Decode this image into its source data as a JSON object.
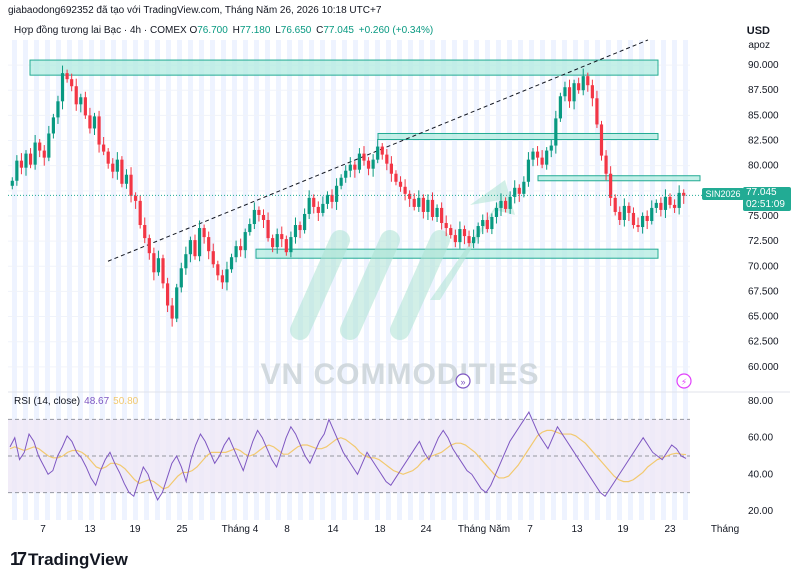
{
  "header": {
    "creator": "giabaodong692352 đã tạo với TradingView.com, Tháng Năm 26, 2026 10:18 UTC+7",
    "currency": "USD",
    "scale_mode": "apoz"
  },
  "legend": {
    "symbol": "Hợp đồng tương lai Bạc · 4h · COMEX",
    "open_label": "O",
    "open": "76.700",
    "high_label": "H",
    "high": "77.180",
    "low_label": "L",
    "low": "76.650",
    "close_label": "C",
    "close": "77.045",
    "change": "+0.260 (+0.34%)"
  },
  "price_badge": {
    "ticker": "SIN2026",
    "price": "77.045",
    "countdown": "02:51:09"
  },
  "rsi_legend": {
    "label": "RSI (14, close)",
    "rsi": "48.67",
    "ma": "50.80"
  },
  "watermark": "VN COMMODITIES",
  "footer": {
    "logo": "17",
    "brand": "TradingView"
  },
  "colors": {
    "up": "#089981",
    "down": "#f23645",
    "zone_fill": "#b2ebe0",
    "zone_stroke": "#22ab94",
    "rsi_line": "#7e57c2",
    "rsi_ma": "#f2c96f",
    "rsi_band": "#ede7f6",
    "session_stripe": "#eef3ff"
  },
  "chart_data": [
    {
      "type": "candlestick",
      "instrument": "Hợp đồng tương lai Bạc · 4h · COMEX",
      "xlabels": [
        "7",
        "13",
        "19",
        "25",
        "Tháng 4",
        "8",
        "14",
        "18",
        "24",
        "Tháng Năm",
        "7",
        "13",
        "19",
        "23",
        "Tháng"
      ],
      "ylim": [
        57.5,
        91.5
      ],
      "yticks": [
        "90.000",
        "87.500",
        "85.000",
        "82.500",
        "80.000",
        "77.500",
        "75.000",
        "72.500",
        "70.000",
        "67.500",
        "65.000",
        "62.500",
        "60.000"
      ],
      "closes": [
        78.5,
        80.5,
        79.8,
        81.2,
        80.1,
        82.3,
        81.5,
        80.8,
        83.2,
        84.8,
        86.4,
        89.2,
        88.6,
        87.9,
        86.1,
        86.8,
        85.0,
        83.7,
        84.9,
        82.1,
        81.4,
        80.2,
        79.4,
        80.6,
        78.2,
        79.1,
        77.0,
        76.5,
        74.1,
        72.8,
        71.3,
        69.4,
        70.8,
        68.3,
        66.1,
        64.8,
        67.9,
        69.8,
        71.2,
        72.6,
        71.0,
        73.8,
        72.9,
        71.5,
        70.2,
        69.1,
        68.4,
        69.7,
        70.9,
        72.0,
        71.6,
        73.4,
        74.2,
        75.6,
        75.1,
        74.6,
        72.8,
        71.9,
        73.2,
        72.7,
        71.4,
        72.9,
        74.1,
        73.6,
        75.2,
        76.8,
        75.9,
        75.3,
        76.2,
        77.1,
        76.4,
        78.0,
        78.8,
        79.5,
        80.1,
        79.6,
        81.2,
        80.5,
        79.7,
        80.6,
        81.9,
        81.1,
        80.2,
        79.2,
        78.4,
        77.9,
        77.2,
        76.7,
        75.9,
        76.8,
        75.4,
        76.6,
        74.9,
        75.8,
        74.3,
        73.8,
        73.1,
        72.4,
        73.7,
        73.0,
        72.3,
        72.9,
        74.0,
        74.6,
        73.7,
        74.9,
        75.8,
        76.5,
        75.7,
        76.9,
        77.8,
        77.2,
        78.4,
        80.6,
        81.4,
        80.8,
        80.1,
        81.5,
        82.0,
        84.7,
        86.9,
        87.8,
        86.4,
        88.2,
        87.5,
        88.9,
        88.0,
        86.7,
        84.1,
        81.0,
        79.2,
        76.8,
        75.4,
        74.6,
        76.0,
        75.3,
        74.1,
        73.9,
        75.0,
        74.5,
        75.8,
        76.3,
        75.6,
        76.9,
        76.1,
        75.8,
        77.3,
        77.0
      ],
      "zones": [
        {
          "label": "resistance-top",
          "from": 89.0,
          "to": 90.5
        },
        {
          "label": "resistance-mid",
          "from": 82.6,
          "to": 83.2
        },
        {
          "label": "resistance-right",
          "from": 78.5,
          "to": 79.0
        },
        {
          "label": "support",
          "from": 70.8,
          "to": 71.7
        }
      ],
      "trendline": {
        "from_price": 70.5,
        "to_price": 92.5,
        "style": "dashed"
      },
      "last_price": 77.045
    },
    {
      "type": "line",
      "title": "RSI (14, close)",
      "ylim": [
        15,
        85
      ],
      "yticks": [
        "80.00",
        "60.00",
        "40.00",
        "20.00"
      ],
      "bands": [
        30,
        50,
        70
      ],
      "series": [
        {
          "name": "RSI",
          "values": [
            55,
            60,
            48,
            52,
            62,
            58,
            50,
            45,
            40,
            42,
            50,
            55,
            61,
            58,
            52,
            49,
            44,
            38,
            34,
            42,
            48,
            52,
            46,
            41,
            35,
            30,
            28,
            36,
            44,
            40,
            32,
            26,
            30,
            38,
            46,
            50,
            44,
            36,
            48,
            56,
            62,
            58,
            52,
            46,
            50,
            56,
            60,
            54,
            48,
            42,
            50,
            58,
            64,
            60,
            54,
            48,
            44,
            52,
            60,
            66,
            62,
            56,
            50,
            46,
            52,
            58,
            62,
            70,
            64,
            58,
            52,
            48,
            44,
            40,
            46,
            52,
            48,
            44,
            40,
            36,
            34,
            38,
            42,
            46,
            50,
            54,
            58,
            52,
            48,
            54,
            60,
            64,
            60,
            54,
            50,
            46,
            42,
            40,
            36,
            32,
            30,
            34,
            40,
            46,
            52,
            58,
            62,
            66,
            70,
            74,
            68,
            62,
            58,
            54,
            60,
            66,
            62,
            58,
            54,
            50,
            46,
            42,
            38,
            34,
            30,
            28,
            32,
            36,
            40,
            44,
            48,
            52,
            56,
            60,
            56,
            52,
            50,
            48,
            52,
            56,
            54,
            50,
            48.67
          ]
        },
        {
          "name": "MA",
          "values": [
            54,
            55,
            54,
            53,
            54,
            55,
            54,
            52,
            50,
            49,
            49,
            50,
            52,
            53,
            53,
            52,
            50,
            47,
            44,
            43,
            44,
            46,
            46,
            45,
            43,
            40,
            37,
            35,
            36,
            37,
            36,
            34,
            32,
            33,
            36,
            39,
            41,
            41,
            42,
            44,
            47,
            50,
            52,
            52,
            52,
            52,
            53,
            54,
            53,
            51,
            50,
            51,
            53,
            55,
            56,
            55,
            53,
            51,
            51,
            53,
            55,
            56,
            56,
            55,
            54,
            54,
            55,
            57,
            59,
            60,
            59,
            57,
            55,
            52,
            50,
            49,
            49,
            48,
            46,
            44,
            42,
            41,
            40,
            41,
            42,
            44,
            47,
            49,
            50,
            51,
            52,
            54,
            56,
            57,
            57,
            56,
            54,
            52,
            49,
            46,
            43,
            40,
            38,
            38,
            39,
            42,
            45,
            49,
            53,
            57,
            61,
            63,
            64,
            64,
            63,
            62,
            62,
            62,
            61,
            59,
            57,
            54,
            51,
            48,
            45,
            42,
            39,
            37,
            36,
            36,
            37,
            39,
            41,
            44,
            46,
            48,
            49,
            50,
            51,
            51.5,
            51,
            50.8
          ]
        }
      ]
    }
  ]
}
